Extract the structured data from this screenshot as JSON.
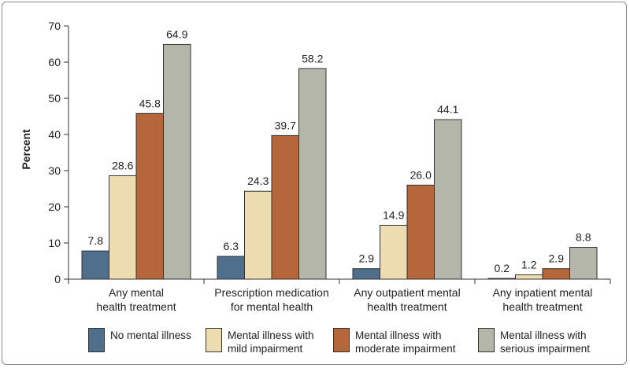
{
  "chart_data": {
    "type": "bar",
    "ylabel": "Percent",
    "xlabel": "",
    "ylim": [
      0,
      70
    ],
    "yticks": [
      0,
      10,
      20,
      30,
      40,
      50,
      60,
      70
    ],
    "grid": false,
    "legend_position": "bottom",
    "categories": [
      "Any mental\nhealth treatment",
      "Prescription medication\nfor mental health",
      "Any outpatient mental\nhealth treatment",
      "Any inpatient mental\nhealth treatment"
    ],
    "series": [
      {
        "name": "No mental illness",
        "color": "#4f6f8c",
        "values": [
          7.8,
          6.3,
          2.9,
          0.2
        ],
        "labels": [
          "7.8",
          "6.3",
          "2.9",
          "0.2"
        ]
      },
      {
        "name": "Mental illness with\nmild impairment",
        "color": "#ecdcb0",
        "values": [
          28.6,
          24.3,
          14.9,
          1.2
        ],
        "labels": [
          "28.6",
          "24.3",
          "14.9",
          "1.2"
        ]
      },
      {
        "name": "Mental illness with\nmoderate impairment",
        "color": "#b5663a",
        "values": [
          45.8,
          39.7,
          26.0,
          2.9
        ],
        "labels": [
          "45.8",
          "39.7",
          "26.0",
          "2.9"
        ]
      },
      {
        "name": "Mental illness with\nserious impairment",
        "color": "#b4b6aa",
        "values": [
          64.9,
          58.2,
          44.1,
          8.8
        ],
        "labels": [
          "64.9",
          "58.2",
          "44.1",
          "8.8"
        ]
      }
    ]
  }
}
